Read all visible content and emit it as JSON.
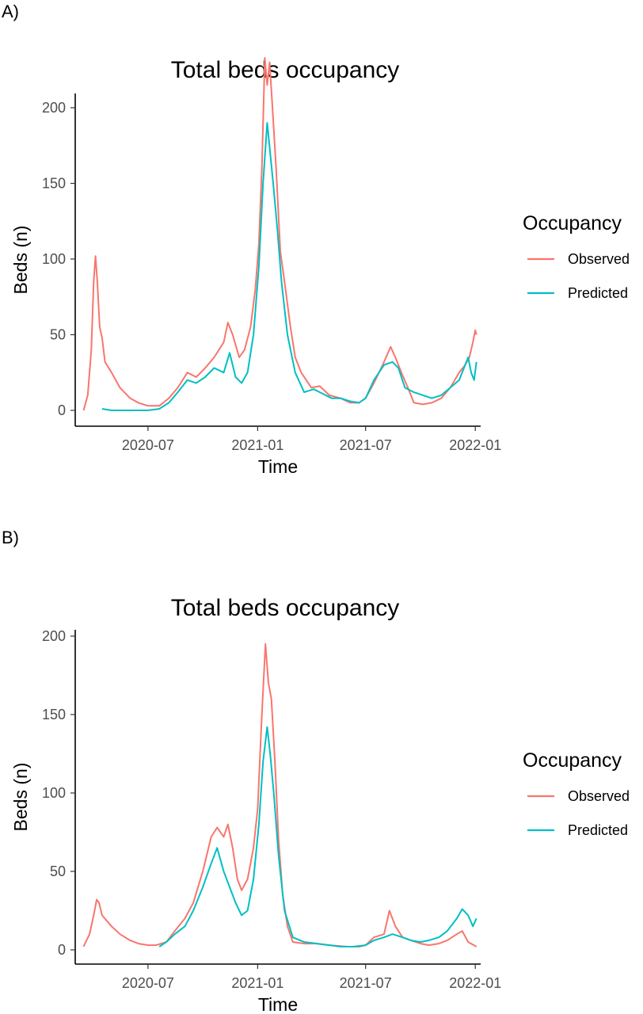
{
  "panels": [
    {
      "tag": "A)"
    },
    {
      "tag": "B)"
    }
  ],
  "chart_data": [
    {
      "type": "line",
      "title": "Total beds occupancy",
      "xlabel": "Time",
      "ylabel": "Beds (n)",
      "xlim": [
        "2020-03-01",
        "2022-01-10"
      ],
      "ylim": [
        0,
        230
      ],
      "x_ticks": [
        "2020-07-01",
        "2021-01-01",
        "2021-07-01",
        "2022-01-01"
      ],
      "x_tick_labels": [
        "2020-07",
        "2021-01",
        "2021-07",
        "2022-01"
      ],
      "y_ticks": [
        0,
        50,
        100,
        150,
        200
      ],
      "legend": {
        "title": "Occupancy",
        "position": "right"
      },
      "series": [
        {
          "name": "Observed",
          "color": "#F8766D",
          "points": [
            [
              "2020-03-15",
              0
            ],
            [
              "2020-03-22",
              10
            ],
            [
              "2020-03-28",
              40
            ],
            [
              "2020-04-01",
              85
            ],
            [
              "2020-04-04",
              102
            ],
            [
              "2020-04-07",
              85
            ],
            [
              "2020-04-11",
              55
            ],
            [
              "2020-04-15",
              48
            ],
            [
              "2020-04-20",
              32
            ],
            [
              "2020-05-01",
              25
            ],
            [
              "2020-05-15",
              15
            ],
            [
              "2020-06-01",
              8
            ],
            [
              "2020-06-15",
              5
            ],
            [
              "2020-07-01",
              3
            ],
            [
              "2020-07-20",
              3
            ],
            [
              "2020-08-05",
              8
            ],
            [
              "2020-08-20",
              15
            ],
            [
              "2020-09-05",
              25
            ],
            [
              "2020-09-20",
              22
            ],
            [
              "2020-10-05",
              28
            ],
            [
              "2020-10-20",
              35
            ],
            [
              "2020-11-05",
              45
            ],
            [
              "2020-11-12",
              58
            ],
            [
              "2020-11-20",
              50
            ],
            [
              "2020-12-01",
              35
            ],
            [
              "2020-12-10",
              40
            ],
            [
              "2020-12-20",
              55
            ],
            [
              "2020-12-28",
              80
            ],
            [
              "2021-01-03",
              110
            ],
            [
              "2021-01-08",
              160
            ],
            [
              "2021-01-13",
              233
            ],
            [
              "2021-01-17",
              215
            ],
            [
              "2021-01-21",
              230
            ],
            [
              "2021-01-25",
              205
            ],
            [
              "2021-02-01",
              160
            ],
            [
              "2021-02-08",
              105
            ],
            [
              "2021-02-15",
              85
            ],
            [
              "2021-02-25",
              55
            ],
            [
              "2021-03-05",
              35
            ],
            [
              "2021-03-15",
              25
            ],
            [
              "2021-04-01",
              15
            ],
            [
              "2021-04-15",
              16
            ],
            [
              "2021-05-01",
              10
            ],
            [
              "2021-05-20",
              8
            ],
            [
              "2021-06-05",
              5
            ],
            [
              "2021-06-20",
              5
            ],
            [
              "2021-07-01",
              8
            ],
            [
              "2021-07-15",
              18
            ],
            [
              "2021-08-01",
              32
            ],
            [
              "2021-08-12",
              42
            ],
            [
              "2021-08-20",
              35
            ],
            [
              "2021-08-30",
              25
            ],
            [
              "2021-09-10",
              15
            ],
            [
              "2021-09-20",
              5
            ],
            [
              "2021-10-05",
              4
            ],
            [
              "2021-10-20",
              5
            ],
            [
              "2021-11-05",
              8
            ],
            [
              "2021-11-20",
              15
            ],
            [
              "2021-12-05",
              25
            ],
            [
              "2021-12-15",
              30
            ],
            [
              "2021-12-22",
              35
            ],
            [
              "2021-12-28",
              45
            ],
            [
              "2022-01-01",
              53
            ],
            [
              "2022-01-03",
              50
            ]
          ]
        },
        {
          "name": "Predicted",
          "color": "#00BFC4",
          "points": [
            [
              "2020-04-15",
              1
            ],
            [
              "2020-05-01",
              0
            ],
            [
              "2020-06-01",
              0
            ],
            [
              "2020-07-01",
              0
            ],
            [
              "2020-07-20",
              1
            ],
            [
              "2020-08-05",
              5
            ],
            [
              "2020-08-20",
              12
            ],
            [
              "2020-09-05",
              20
            ],
            [
              "2020-09-20",
              18
            ],
            [
              "2020-10-05",
              22
            ],
            [
              "2020-10-20",
              28
            ],
            [
              "2020-11-05",
              25
            ],
            [
              "2020-11-15",
              38
            ],
            [
              "2020-11-25",
              22
            ],
            [
              "2020-12-05",
              18
            ],
            [
              "2020-12-15",
              25
            ],
            [
              "2020-12-25",
              50
            ],
            [
              "2021-01-03",
              95
            ],
            [
              "2021-01-10",
              150
            ],
            [
              "2021-01-17",
              190
            ],
            [
              "2021-01-22",
              170
            ],
            [
              "2021-01-27",
              150
            ],
            [
              "2021-02-03",
              120
            ],
            [
              "2021-02-10",
              85
            ],
            [
              "2021-02-20",
              50
            ],
            [
              "2021-03-05",
              25
            ],
            [
              "2021-03-20",
              12
            ],
            [
              "2021-04-05",
              14
            ],
            [
              "2021-04-20",
              11
            ],
            [
              "2021-05-05",
              8
            ],
            [
              "2021-05-20",
              8
            ],
            [
              "2021-06-05",
              6
            ],
            [
              "2021-06-20",
              5
            ],
            [
              "2021-07-01",
              8
            ],
            [
              "2021-07-15",
              20
            ],
            [
              "2021-08-01",
              30
            ],
            [
              "2021-08-15",
              32
            ],
            [
              "2021-08-25",
              28
            ],
            [
              "2021-09-05",
              15
            ],
            [
              "2021-09-20",
              12
            ],
            [
              "2021-10-05",
              10
            ],
            [
              "2021-10-20",
              8
            ],
            [
              "2021-11-05",
              10
            ],
            [
              "2021-11-20",
              15
            ],
            [
              "2021-12-05",
              20
            ],
            [
              "2021-12-15",
              30
            ],
            [
              "2021-12-20",
              35
            ],
            [
              "2021-12-25",
              25
            ],
            [
              "2021-12-30",
              20
            ],
            [
              "2022-01-03",
              32
            ]
          ]
        }
      ]
    },
    {
      "type": "line",
      "title": "Total beds occupancy",
      "xlabel": "Time",
      "ylabel": "Beds (n)",
      "xlim": [
        "2020-03-01",
        "2022-01-10"
      ],
      "ylim": [
        0,
        200
      ],
      "x_ticks": [
        "2020-07-01",
        "2021-01-01",
        "2021-07-01",
        "2022-01-01"
      ],
      "x_tick_labels": [
        "2020-07",
        "2021-01",
        "2021-07",
        "2022-01"
      ],
      "y_ticks": [
        0,
        50,
        100,
        150,
        200
      ],
      "legend": {
        "title": "Occupancy",
        "position": "right"
      },
      "series": [
        {
          "name": "Observed",
          "color": "#F8766D",
          "points": [
            [
              "2020-03-15",
              2
            ],
            [
              "2020-03-25",
              10
            ],
            [
              "2020-04-01",
              22
            ],
            [
              "2020-04-06",
              32
            ],
            [
              "2020-04-10",
              30
            ],
            [
              "2020-04-15",
              22
            ],
            [
              "2020-05-01",
              15
            ],
            [
              "2020-05-15",
              10
            ],
            [
              "2020-06-01",
              6
            ],
            [
              "2020-06-15",
              4
            ],
            [
              "2020-07-01",
              3
            ],
            [
              "2020-07-15",
              3
            ],
            [
              "2020-08-01",
              5
            ],
            [
              "2020-08-15",
              12
            ],
            [
              "2020-09-01",
              20
            ],
            [
              "2020-09-15",
              30
            ],
            [
              "2020-10-01",
              50
            ],
            [
              "2020-10-15",
              72
            ],
            [
              "2020-10-25",
              78
            ],
            [
              "2020-11-05",
              72
            ],
            [
              "2020-11-12",
              80
            ],
            [
              "2020-11-20",
              65
            ],
            [
              "2020-11-28",
              45
            ],
            [
              "2020-12-05",
              38
            ],
            [
              "2020-12-15",
              45
            ],
            [
              "2020-12-25",
              65
            ],
            [
              "2021-01-01",
              90
            ],
            [
              "2021-01-08",
              150
            ],
            [
              "2021-01-14",
              195
            ],
            [
              "2021-01-19",
              170
            ],
            [
              "2021-01-24",
              160
            ],
            [
              "2021-01-30",
              120
            ],
            [
              "2021-02-05",
              70
            ],
            [
              "2021-02-12",
              35
            ],
            [
              "2021-02-20",
              15
            ],
            [
              "2021-03-01",
              5
            ],
            [
              "2021-03-20",
              4
            ],
            [
              "2021-04-10",
              4
            ],
            [
              "2021-05-01",
              3
            ],
            [
              "2021-06-01",
              2
            ],
            [
              "2021-06-20",
              2
            ],
            [
              "2021-07-01",
              3
            ],
            [
              "2021-07-15",
              8
            ],
            [
              "2021-08-01",
              10
            ],
            [
              "2021-08-10",
              25
            ],
            [
              "2021-08-20",
              15
            ],
            [
              "2021-09-01",
              8
            ],
            [
              "2021-09-15",
              6
            ],
            [
              "2021-10-01",
              4
            ],
            [
              "2021-10-15",
              3
            ],
            [
              "2021-11-01",
              4
            ],
            [
              "2021-11-15",
              6
            ],
            [
              "2021-12-01",
              10
            ],
            [
              "2021-12-10",
              12
            ],
            [
              "2021-12-20",
              5
            ],
            [
              "2022-01-03",
              2
            ]
          ]
        },
        {
          "name": "Predicted",
          "color": "#00BFC4",
          "points": [
            [
              "2020-07-20",
              2
            ],
            [
              "2020-08-01",
              5
            ],
            [
              "2020-08-15",
              10
            ],
            [
              "2020-09-01",
              15
            ],
            [
              "2020-09-15",
              25
            ],
            [
              "2020-10-01",
              40
            ],
            [
              "2020-10-15",
              55
            ],
            [
              "2020-10-25",
              65
            ],
            [
              "2020-11-05",
              50
            ],
            [
              "2020-11-15",
              40
            ],
            [
              "2020-11-25",
              30
            ],
            [
              "2020-12-05",
              22
            ],
            [
              "2020-12-15",
              25
            ],
            [
              "2020-12-25",
              45
            ],
            [
              "2021-01-03",
              80
            ],
            [
              "2021-01-10",
              120
            ],
            [
              "2021-01-17",
              142
            ],
            [
              "2021-01-22",
              125
            ],
            [
              "2021-01-28",
              100
            ],
            [
              "2021-02-05",
              60
            ],
            [
              "2021-02-15",
              25
            ],
            [
              "2021-03-01",
              8
            ],
            [
              "2021-03-20",
              5
            ],
            [
              "2021-04-10",
              4
            ],
            [
              "2021-05-01",
              3
            ],
            [
              "2021-05-20",
              2
            ],
            [
              "2021-06-10",
              2
            ],
            [
              "2021-07-01",
              3
            ],
            [
              "2021-07-15",
              6
            ],
            [
              "2021-08-01",
              8
            ],
            [
              "2021-08-15",
              10
            ],
            [
              "2021-09-01",
              8
            ],
            [
              "2021-09-15",
              6
            ],
            [
              "2021-10-01",
              5
            ],
            [
              "2021-10-15",
              6
            ],
            [
              "2021-11-01",
              8
            ],
            [
              "2021-11-15",
              12
            ],
            [
              "2021-12-01",
              20
            ],
            [
              "2021-12-10",
              26
            ],
            [
              "2021-12-20",
              22
            ],
            [
              "2021-12-28",
              15
            ],
            [
              "2022-01-03",
              20
            ]
          ]
        }
      ]
    }
  ]
}
